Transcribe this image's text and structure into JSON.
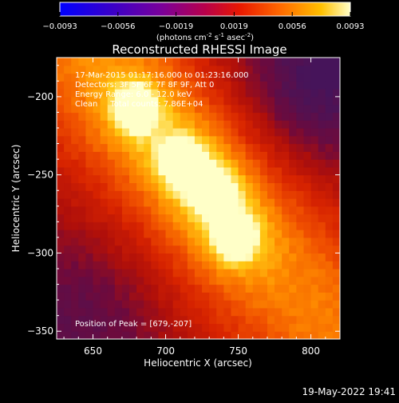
{
  "chart_data": {
    "type": "heatmap",
    "title": "Reconstructed RHESSI Image",
    "xlabel": "Heliocentric X (arcsec)",
    "ylabel": "Heliocentric Y (arcsec)",
    "xlim": [
      625,
      820
    ],
    "ylim": [
      -355,
      -175
    ],
    "x_ticks": [
      650,
      700,
      750,
      800
    ],
    "y_ticks": [
      -200,
      -250,
      -300,
      -350
    ],
    "colorbar": {
      "min": -0.0093,
      "max": 0.0093,
      "ticks": [
        "-0.0093",
        "-0.0056",
        "-0.0019",
        "0.0019",
        "0.0056",
        "0.0093"
      ],
      "unit_prefix": "(photons cm",
      "unit_exp1": "-2",
      "unit_mid": " s",
      "unit_exp2": "-1",
      "unit_mid2": " asec",
      "unit_exp3": "-2",
      "unit_suffix": ")"
    },
    "sources": [
      {
        "x": 679,
        "y": -207,
        "peak": 1.0
      },
      {
        "x": 712,
        "y": -242,
        "peak": 0.95
      },
      {
        "x": 733,
        "y": -260,
        "peak": 0.9
      },
      {
        "x": 748,
        "y": -290,
        "peak": 0.95
      }
    ],
    "peak_position": [
      679,
      -207
    ],
    "annotations": [
      "17-Mar-2015 01:17:16.000 to 01:23:16.000",
      "Detectors: 3F 5F 6F 7F 8F 9F, Att 0",
      "Energy Range: 6.0 - 12.0 keV",
      "Clean     Total counts: 7.86E+04"
    ],
    "peak_label": "Position of Peak = [679,-207]"
  },
  "footer": {
    "timestamp": "19-May-2022 19:41"
  }
}
